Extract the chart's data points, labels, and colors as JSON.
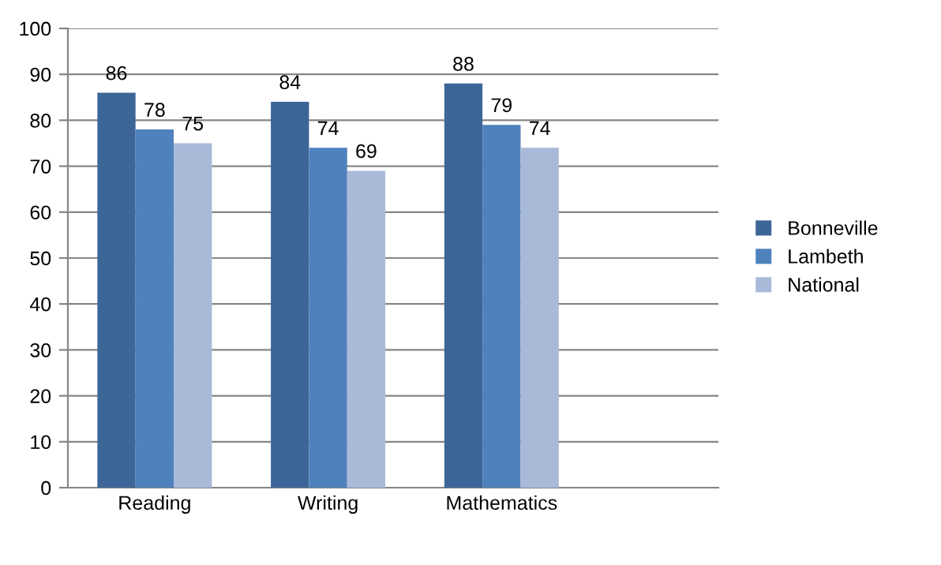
{
  "chart_data": {
    "type": "bar",
    "categories": [
      "Reading",
      "Writing",
      "Mathematics"
    ],
    "series": [
      {
        "name": "Bonneville",
        "color": "#3d6698",
        "values": [
          86,
          84,
          88
        ]
      },
      {
        "name": "Lambeth",
        "color": "#4f81bd",
        "values": [
          78,
          74,
          79
        ]
      },
      {
        "name": "National",
        "color": "#a9bad9",
        "values": [
          75,
          69,
          74
        ]
      }
    ],
    "ylim": [
      0,
      100
    ],
    "yticks": [
      0,
      10,
      20,
      30,
      40,
      50,
      60,
      70,
      80,
      90,
      100
    ],
    "grid": "y",
    "legend": "right",
    "data_labels": true
  }
}
